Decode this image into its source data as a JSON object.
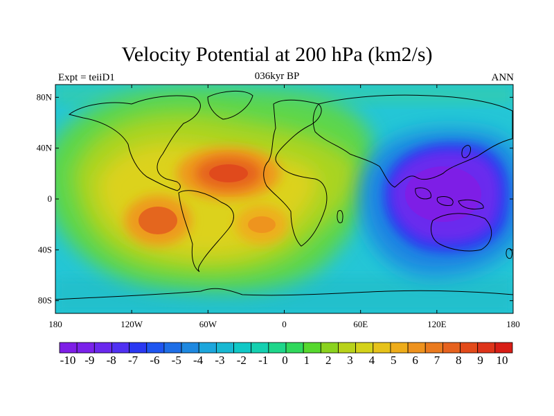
{
  "header": {
    "title": "Velocity Potential at 200 hPa (km2/s)",
    "left_label": "Expt = teiiD1",
    "center_label": "036kyr BP",
    "right_label": "ANN"
  },
  "map": {
    "projection": "cylindrical equidistant",
    "lon_range": [
      -180,
      180
    ],
    "lat_range": [
      -90,
      90
    ],
    "x_ticks": [
      {
        "value": -180,
        "label": "180"
      },
      {
        "value": -120,
        "label": "120W"
      },
      {
        "value": -60,
        "label": "60W"
      },
      {
        "value": 0,
        "label": "0"
      },
      {
        "value": 60,
        "label": "60E"
      },
      {
        "value": 120,
        "label": "120E"
      },
      {
        "value": 180,
        "label": "180"
      }
    ],
    "y_ticks": [
      {
        "value": 80,
        "label": "80N"
      },
      {
        "value": 40,
        "label": "40N"
      },
      {
        "value": 0,
        "label": "0"
      },
      {
        "value": -40,
        "label": "40S"
      },
      {
        "value": -80,
        "label": "80S"
      }
    ],
    "field_features": [
      {
        "name": "Atlantic/Caribbean maximum",
        "lon": -45,
        "lat": 18,
        "peak": 9
      },
      {
        "name": "Southeast Pacific maximum",
        "lon": -100,
        "lat": -18,
        "peak": 8.5
      },
      {
        "name": "South Atlantic maximum",
        "lon": -25,
        "lat": -20,
        "peak": 7
      },
      {
        "name": "Maritime Continent minimum",
        "lon": 125,
        "lat": 5,
        "peak": -10
      }
    ]
  },
  "colorbar": {
    "labels": [
      "-10",
      "-9",
      "-8",
      "-7",
      "-6",
      "-5",
      "-4",
      "-3",
      "-2",
      "-1",
      "0",
      "1",
      "2",
      "3",
      "4",
      "5",
      "6",
      "7",
      "8",
      "9",
      "10"
    ],
    "colors": [
      "#7e1ee6",
      "#7a22ea",
      "#6a28ee",
      "#5030f2",
      "#2a38f2",
      "#1e55f0",
      "#1e6ee6",
      "#1e88e0",
      "#1ca6dc",
      "#18b8d2",
      "#10c8c6",
      "#14d0b0",
      "#1ed68a",
      "#30d85c",
      "#56d82e",
      "#8ad21e",
      "#b8d21a",
      "#d4d21a",
      "#e6c21a",
      "#eeac1a",
      "#ee921e",
      "#ea7a1e",
      "#e6621e",
      "#e24a1a",
      "#de341a",
      "#d81e16"
    ]
  }
}
